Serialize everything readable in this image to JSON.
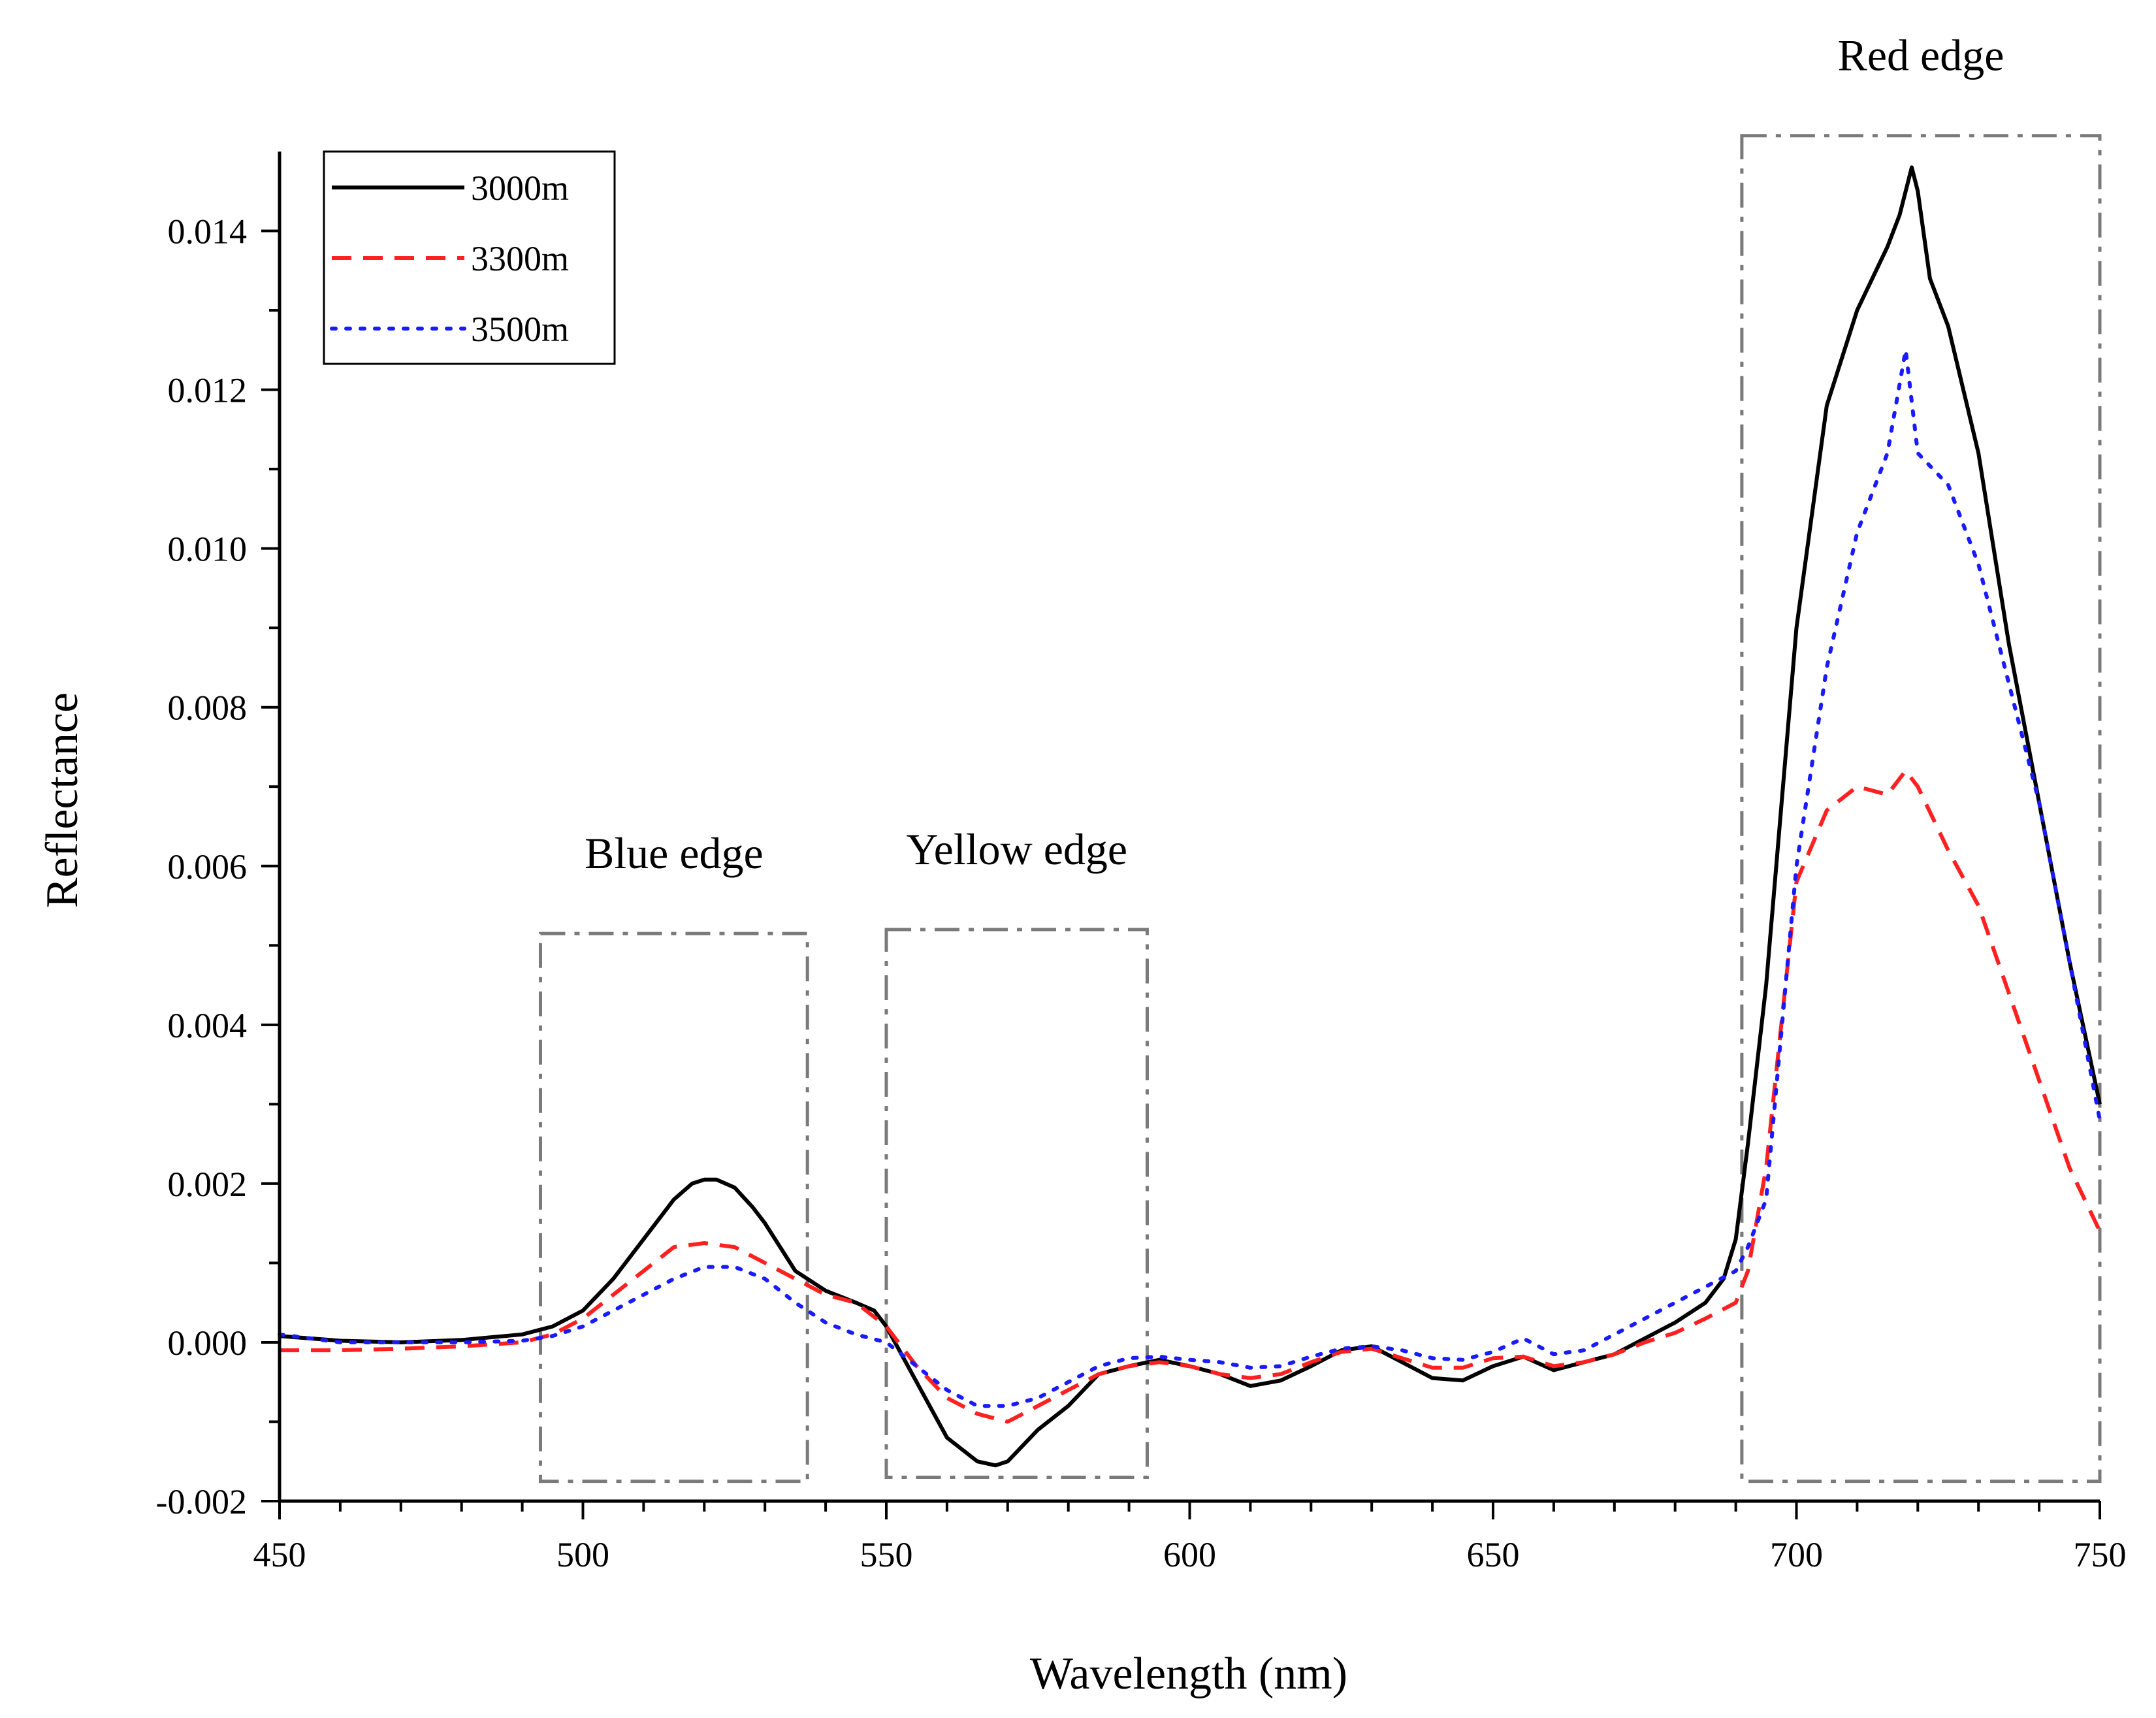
{
  "chart_data": {
    "type": "line",
    "title": "",
    "xlabel": "Wavelength (nm)",
    "ylabel": "Reflectance",
    "xlim": [
      450,
      750
    ],
    "ylim": [
      -0.002,
      0.015
    ],
    "x_ticks": [
      450,
      500,
      550,
      600,
      650,
      700,
      750
    ],
    "x_tick_labels": [
      "450",
      "500",
      "550",
      "600",
      "650",
      "700",
      "750"
    ],
    "y_ticks": [
      -0.002,
      0.0,
      0.002,
      0.004,
      0.006,
      0.008,
      0.01,
      0.012,
      0.014
    ],
    "y_tick_labels": [
      "-0.002",
      "0.000",
      "0.002",
      "0.004",
      "0.006",
      "0.008",
      "0.010",
      "0.012",
      "0.014"
    ],
    "grid": false,
    "legend_position": "top-left",
    "series": [
      {
        "name": "3000m",
        "color": "#000000",
        "style": "solid",
        "x": [
          450,
          460,
          470,
          480,
          490,
          495,
          500,
          505,
          510,
          515,
          518,
          520,
          522,
          525,
          528,
          530,
          535,
          540,
          545,
          548,
          550,
          555,
          560,
          565,
          568,
          570,
          575,
          580,
          585,
          590,
          595,
          600,
          605,
          610,
          615,
          620,
          625,
          630,
          635,
          640,
          645,
          650,
          655,
          660,
          665,
          670,
          675,
          680,
          685,
          688,
          690,
          692,
          695,
          700,
          705,
          710,
          715,
          717,
          719,
          720,
          722,
          725,
          730,
          735,
          740,
          745,
          750
        ],
        "values": [
          8e-05,
          2e-05,
          0.0,
          3e-05,
          0.0001,
          0.0002,
          0.0004,
          0.0008,
          0.0013,
          0.0018,
          0.002,
          0.00205,
          0.00205,
          0.00195,
          0.0017,
          0.0015,
          0.0009,
          0.00065,
          0.0005,
          0.0004,
          0.0002,
          -0.0005,
          -0.0012,
          -0.0015,
          -0.00155,
          -0.0015,
          -0.0011,
          -0.0008,
          -0.0004,
          -0.0003,
          -0.00022,
          -0.0003,
          -0.0004,
          -0.00055,
          -0.00048,
          -0.0003,
          -0.0001,
          -5e-05,
          -0.00025,
          -0.00045,
          -0.00048,
          -0.0003,
          -0.00018,
          -0.00035,
          -0.00025,
          -0.00015,
          5e-05,
          0.00025,
          0.0005,
          0.0008,
          0.0013,
          0.0025,
          0.0045,
          0.009,
          0.0118,
          0.013,
          0.0138,
          0.0142,
          0.0148,
          0.0145,
          0.0134,
          0.0128,
          0.0112,
          0.0088,
          0.0068,
          0.0048,
          0.003
        ]
      },
      {
        "name": "3300m",
        "color": "#ff2020",
        "style": "dashed",
        "x": [
          450,
          460,
          470,
          480,
          490,
          495,
          500,
          505,
          510,
          515,
          520,
          525,
          530,
          535,
          540,
          545,
          550,
          555,
          560,
          565,
          570,
          575,
          580,
          585,
          590,
          595,
          600,
          605,
          610,
          615,
          620,
          625,
          630,
          635,
          640,
          645,
          650,
          655,
          660,
          665,
          670,
          675,
          680,
          685,
          690,
          692,
          695,
          700,
          705,
          710,
          715,
          718,
          720,
          725,
          730,
          735,
          740,
          745,
          750
        ],
        "values": [
          -0.0001,
          -0.0001,
          -8e-05,
          -5e-05,
          0.0,
          0.0001,
          0.0003,
          0.0006,
          0.0009,
          0.0012,
          0.00125,
          0.0012,
          0.001,
          0.0008,
          0.0006,
          0.0005,
          0.0002,
          -0.0003,
          -0.0007,
          -0.0009,
          -0.001,
          -0.0008,
          -0.0006,
          -0.0004,
          -0.0003,
          -0.00025,
          -0.0003,
          -0.0004,
          -0.00045,
          -0.0004,
          -0.00025,
          -0.00012,
          -8e-05,
          -0.0002,
          -0.00032,
          -0.00032,
          -0.0002,
          -0.00018,
          -0.0003,
          -0.00025,
          -0.00015,
          0.0,
          0.00012,
          0.0003,
          0.0005,
          0.0009,
          0.0022,
          0.0058,
          0.0067,
          0.007,
          0.0069,
          0.0072,
          0.007,
          0.0062,
          0.0055,
          0.0044,
          0.0033,
          0.0022,
          0.0014
        ]
      },
      {
        "name": "3500m",
        "color": "#1a1aff",
        "style": "dotted",
        "x": [
          450,
          460,
          470,
          480,
          490,
          495,
          500,
          505,
          510,
          515,
          520,
          525,
          530,
          535,
          540,
          545,
          550,
          555,
          560,
          565,
          570,
          575,
          580,
          585,
          590,
          595,
          600,
          605,
          610,
          615,
          620,
          625,
          630,
          635,
          640,
          645,
          650,
          655,
          660,
          665,
          670,
          675,
          680,
          685,
          690,
          692,
          695,
          700,
          705,
          710,
          715,
          718,
          720,
          725,
          730,
          735,
          740,
          745,
          750
        ],
        "values": [
          0.0001,
          0.0,
          0.0,
          0.0,
          2e-05,
          8e-05,
          0.0002,
          0.0004,
          0.0006,
          0.0008,
          0.00095,
          0.00095,
          0.0008,
          0.0005,
          0.00025,
          0.0001,
          0.0,
          -0.0003,
          -0.0006,
          -0.0008,
          -0.0008,
          -0.0007,
          -0.0005,
          -0.0003,
          -0.0002,
          -0.00018,
          -0.00022,
          -0.00025,
          -0.00032,
          -0.0003,
          -0.00018,
          -8e-05,
          -5e-05,
          -0.0001,
          -0.0002,
          -0.00022,
          -0.00012,
          5e-05,
          -0.00015,
          -0.0001,
          0.0001,
          0.0003,
          0.0005,
          0.0007,
          0.0009,
          0.0012,
          0.0018,
          0.006,
          0.0085,
          0.0102,
          0.0112,
          0.0125,
          0.0112,
          0.0108,
          0.0098,
          0.0083,
          0.0068,
          0.0048,
          0.0028
        ]
      }
    ],
    "annotations": [
      {
        "label": "Blue edge",
        "x_range": [
          493,
          537
        ],
        "y_range": [
          -0.00175,
          0.00515
        ]
      },
      {
        "label": "Yellow edge",
        "x_range": [
          550,
          593
        ],
        "y_range": [
          -0.0017,
          0.0052
        ]
      },
      {
        "label": "Red edge",
        "x_range": [
          691,
          750
        ],
        "y_range": [
          -0.00175,
          0.0152
        ]
      }
    ]
  }
}
